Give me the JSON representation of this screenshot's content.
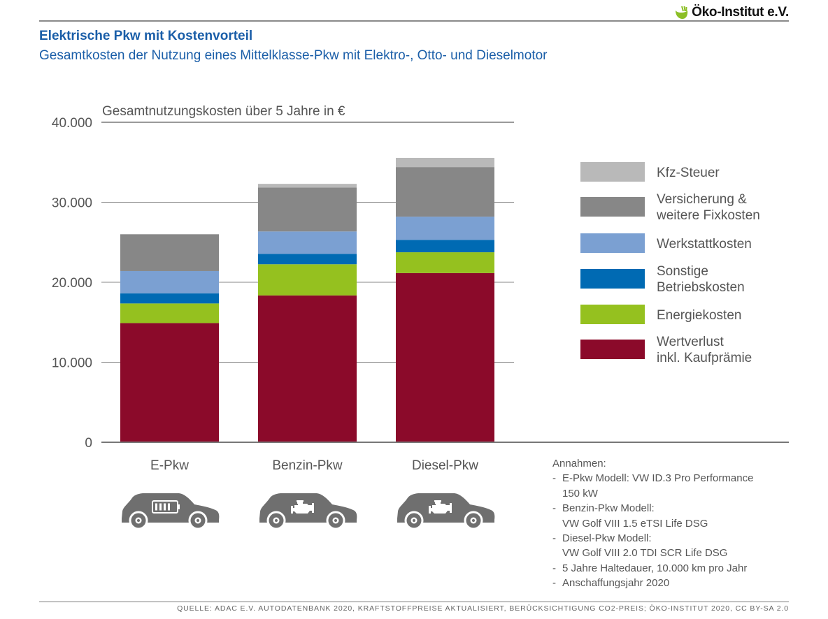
{
  "header": {
    "logo_text": "Öko-Institut e.V.",
    "title": "Elektrische Pkw mit Kostenvorteil",
    "subtitle": "Gesamtkosten der Nutzung eines Mittelklasse-Pkw mit Elektro-, Otto- und Dieselmotor"
  },
  "chart_data": {
    "type": "bar",
    "stacked": true,
    "title": "Gesamtnutzungskosten über 5 Jahre in €",
    "xlabel": "",
    "ylabel": "Gesamtnutzungskosten über 5 Jahre in €",
    "ylim": [
      0,
      40000
    ],
    "yticks": [
      0,
      10000,
      20000,
      30000,
      40000
    ],
    "ytick_labels": [
      "0",
      "10.000",
      "20.000",
      "30.000",
      "40.000"
    ],
    "grid": true,
    "legend_position": "right",
    "categories": [
      "E-Pkw",
      "Benzin-Pkw",
      "Diesel-Pkw"
    ],
    "category_icons": [
      "car-battery-icon",
      "car-engine-icon",
      "car-engine-icon"
    ],
    "series": [
      {
        "name": "Wertverlust inkl. Kaufprämie",
        "legend_lines": [
          "Wertverlust",
          "inkl. Kaufprämie"
        ],
        "color": "#8b0a2a",
        "values": [
          14900,
          18350,
          21150
        ]
      },
      {
        "name": "Energiekosten",
        "legend_lines": [
          "Energiekosten"
        ],
        "color": "#95c11f",
        "values": [
          2450,
          3900,
          2600
        ]
      },
      {
        "name": "Sonstige Betriebskosten",
        "legend_lines": [
          "Sonstige",
          "Betriebskosten"
        ],
        "color": "#006ab3",
        "values": [
          1250,
          1300,
          1550
        ]
      },
      {
        "name": "Werkstattkosten",
        "legend_lines": [
          "Werkstattkosten"
        ],
        "color": "#7ba0d2",
        "values": [
          2800,
          2800,
          2900
        ]
      },
      {
        "name": "Versicherung & weitere Fixkosten",
        "legend_lines": [
          "Versicherung &",
          "weitere Fixkosten"
        ],
        "color": "#878787",
        "values": [
          4600,
          5500,
          6200
        ]
      },
      {
        "name": "Kfz-Steuer",
        "legend_lines": [
          "Kfz-Steuer"
        ],
        "color": "#b9b9b9",
        "values": [
          0,
          450,
          1150
        ]
      }
    ]
  },
  "assumptions": {
    "heading": "Annahmen:",
    "items": [
      [
        "E-Pkw Modell: VW ID.3 Pro Performance",
        "150 kW"
      ],
      [
        "Benzin-Pkw Modell:",
        "VW Golf VIII 1.5 eTSI Life DSG"
      ],
      [
        "Diesel-Pkw Modell:",
        "VW Golf VIII 2.0 TDI SCR Life DSG"
      ],
      [
        "5 Jahre Haltedauer, 10.000 km pro Jahr"
      ],
      [
        "Anschaffungsjahr 2020"
      ]
    ]
  },
  "footer": {
    "source": "QUELLE: ADAC E.V. AUTODATENBANK 2020, KRAFTSTOFFPREISE AKTUALISIERT, BERÜCKSICHTIGUNG CO2-PREIS; ÖKO-INSTITUT 2020, CC BY-SA 2.0"
  },
  "colors": {
    "title_blue": "#1a5ea8",
    "logo_green": "#8cbf26"
  }
}
